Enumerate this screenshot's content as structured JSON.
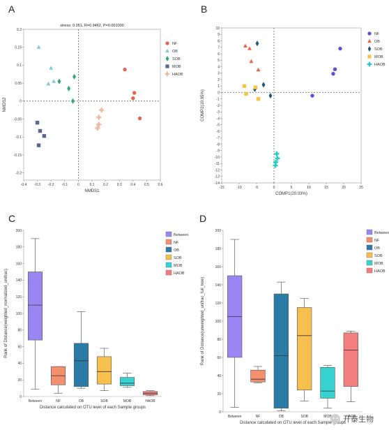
{
  "panel_letters": [
    "A",
    "B",
    "C",
    "D"
  ],
  "watermark": {
    "text": "开泰生物",
    "icon": "wechat-icon"
  },
  "chart_data": [
    {
      "id": "A",
      "type": "scatter",
      "annotation": "stress: 0.051, R=0.9462, P=0.001000",
      "xlabel": "NMDS1",
      "ylabel": "NMDS2",
      "xlim": [
        -0.4,
        0.6
      ],
      "ylim": [
        -0.22,
        0.2
      ],
      "xticks": [
        "-0.4",
        "-0.3",
        "-0.2",
        "-0.1",
        "0",
        "0.1",
        "0.2",
        "0.3",
        "0.4",
        "0.5",
        "0.6"
      ],
      "yticks": [
        "0.2",
        "0.15",
        "0.1",
        "0.05",
        "0",
        "-0.05",
        "-0.1",
        "-0.15",
        "-0.2"
      ],
      "xtick_vals": [
        -0.4,
        -0.3,
        -0.2,
        -0.1,
        0,
        0.1,
        0.2,
        0.3,
        0.4,
        0.5,
        0.6
      ],
      "ytick_vals": [
        0.2,
        0.15,
        0.1,
        0.05,
        0,
        -0.05,
        -0.1,
        -0.15,
        -0.2
      ],
      "legend_position": "top-right",
      "series": [
        {
          "name": "NF",
          "color": "#e2664c",
          "marker": "circle",
          "x": [
            0.34,
            0.41,
            0.4,
            0.45
          ],
          "y": [
            0.088,
            0.023,
            0.008,
            -0.048
          ]
        },
        {
          "name": "OB",
          "color": "#7fc9d6",
          "marker": "triangle",
          "x": [
            -0.29,
            -0.2,
            -0.18,
            -0.22
          ],
          "y": [
            0.15,
            0.092,
            0.055,
            0.048
          ]
        },
        {
          "name": "SOB",
          "color": "#2ba57f",
          "marker": "diamond",
          "x": [
            -0.14,
            -0.03,
            -0.07,
            -0.04
          ],
          "y": [
            0.055,
            0.068,
            0.035,
            0.0
          ]
        },
        {
          "name": "MOB",
          "color": "#5a6791",
          "marker": "square",
          "x": [
            -0.3,
            -0.28,
            -0.25,
            -0.29
          ],
          "y": [
            -0.06,
            -0.083,
            -0.097,
            -0.123
          ]
        },
        {
          "name": "HAOB",
          "color": "#f1b89f",
          "marker": "cross",
          "x": [
            0.17,
            0.15,
            0.15,
            0.14
          ],
          "y": [
            -0.025,
            -0.045,
            -0.065,
            -0.075
          ]
        }
      ]
    },
    {
      "id": "B",
      "type": "scatter",
      "xlabel": "COMP1(20.03%)",
      "ylabel": "COMP2(10.95%)",
      "xlim": [
        -15,
        25
      ],
      "ylim": [
        -14,
        10
      ],
      "xticks": [
        "-15",
        "-10",
        "-5",
        "0",
        "5",
        "10",
        "15",
        "20",
        "25"
      ],
      "yticks": [
        "10",
        "9",
        "8",
        "7",
        "6",
        "5",
        "4",
        "3",
        "2",
        "1",
        "0",
        "-1",
        "-2",
        "-3",
        "-4",
        "-5",
        "-6",
        "-7",
        "-8",
        "-9",
        "-10",
        "-11",
        "-12",
        "-13",
        "-14"
      ],
      "xtick_vals": [
        -15,
        -10,
        -5,
        0,
        5,
        10,
        15,
        20,
        25
      ],
      "ytick_vals": [
        10,
        9,
        8,
        7,
        6,
        5,
        4,
        3,
        2,
        1,
        0,
        -1,
        -2,
        -3,
        -4,
        -5,
        -6,
        -7,
        -8,
        -9,
        -10,
        -11,
        -12,
        -13,
        -14
      ],
      "legend_position": "top-right",
      "series": [
        {
          "name": "NF",
          "color": "#5b4fd9",
          "marker": "circle",
          "x": [
            19,
            17.5,
            17,
            11
          ],
          "y": [
            6.8,
            3.6,
            2.9,
            -0.5
          ]
        },
        {
          "name": "OB",
          "color": "#e2664c",
          "marker": "triangle",
          "x": [
            -8.2,
            -7,
            -6.5,
            -4.5
          ],
          "y": [
            7.2,
            6.8,
            4.8,
            3.5
          ]
        },
        {
          "name": "SOB",
          "color": "#1f5872",
          "marker": "diamond",
          "x": [
            -4.8,
            -3,
            -5.5,
            -1
          ],
          "y": [
            7.6,
            1.2,
            0.5,
            -0.5
          ]
        },
        {
          "name": "MOB",
          "color": "#f4c542",
          "marker": "square",
          "x": [
            -8.5,
            -8,
            -4.5,
            -5.3
          ],
          "y": [
            1.0,
            -0.2,
            -1.0,
            0.8
          ]
        },
        {
          "name": "HAOB",
          "color": "#2ec9c5",
          "marker": "cross",
          "x": [
            0.8,
            1,
            0.5,
            0.4
          ],
          "y": [
            -9.5,
            -10.2,
            -10.8,
            -11.3
          ]
        }
      ]
    },
    {
      "id": "C",
      "type": "boxplot",
      "xlabel": "Distance calculated on OTU level of each Sample groups",
      "ylabel": "Rank of Distance(weighted_normalized_unifrac)",
      "ylim": [
        0,
        200
      ],
      "yticks": [
        "0",
        "20",
        "40",
        "60",
        "80",
        "100",
        "120",
        "140",
        "160",
        "180",
        "200"
      ],
      "ytick_vals": [
        0,
        20,
        40,
        60,
        80,
        100,
        120,
        140,
        160,
        180,
        200
      ],
      "categories": [
        "Between",
        "NF",
        "OB",
        "SOB",
        "MOB",
        "HAOB"
      ],
      "legend_position": "right",
      "series": [
        {
          "name": "Between",
          "color": "#9a86f2",
          "min": 9,
          "q1": 68,
          "median": 110,
          "q3": 150,
          "max": 190
        },
        {
          "name": "NF",
          "color": "#f4906e",
          "min": 4,
          "q1": 14,
          "median": 25,
          "q3": 36,
          "max": 36
        },
        {
          "name": "OB",
          "color": "#2b7ba7",
          "min": 10,
          "q1": 12,
          "median": 43,
          "q3": 64,
          "max": 102
        },
        {
          "name": "SOB",
          "color": "#f6c04f",
          "min": 7,
          "q1": 15,
          "median": 30,
          "q3": 48,
          "max": 58
        },
        {
          "name": "MOB",
          "color": "#38d2d3",
          "min": 11,
          "q1": 13,
          "median": 16,
          "q3": 23,
          "max": 28
        },
        {
          "name": "HAOB",
          "color": "#f47d7d",
          "min": 1,
          "q1": 2,
          "median": 4,
          "q3": 6,
          "max": 7
        }
      ]
    },
    {
      "id": "D",
      "type": "boxplot",
      "xlabel": "Distance calculated on OTU level of each Sample groups",
      "ylabel": "Rank of Distance(unweighted_unifrac_full_tree)",
      "ylim": [
        0,
        200
      ],
      "yticks": [
        "0",
        "20",
        "40",
        "60",
        "80",
        "100",
        "120",
        "140",
        "160",
        "180",
        "200"
      ],
      "ytick_vals": [
        0,
        20,
        40,
        60,
        80,
        100,
        120,
        140,
        160,
        180,
        200
      ],
      "categories": [
        "Between",
        "NF",
        "OB",
        "SOB",
        "MOB",
        "HAOB"
      ],
      "legend_position": "right",
      "series": [
        {
          "name": "Between",
          "color": "#9a86f2",
          "min": 5,
          "q1": 60,
          "median": 105,
          "q3": 150,
          "max": 190
        },
        {
          "name": "NF",
          "color": "#f4906e",
          "min": 32,
          "q1": 33,
          "median": 36,
          "q3": 46,
          "max": 50
        },
        {
          "name": "OB",
          "color": "#2b7ba7",
          "min": 1,
          "q1": 4,
          "median": 62,
          "q3": 130,
          "max": 143
        },
        {
          "name": "SOB",
          "color": "#f6c04f",
          "min": 12,
          "q1": 24,
          "median": 84,
          "q3": 115,
          "max": 125
        },
        {
          "name": "MOB",
          "color": "#38d2d3",
          "min": 4,
          "q1": 15,
          "median": 23,
          "q3": 49,
          "max": 51
        },
        {
          "name": "HAOB",
          "color": "#f47d7d",
          "min": 11,
          "q1": 28,
          "median": 68,
          "q3": 87,
          "max": 89
        }
      ]
    }
  ]
}
